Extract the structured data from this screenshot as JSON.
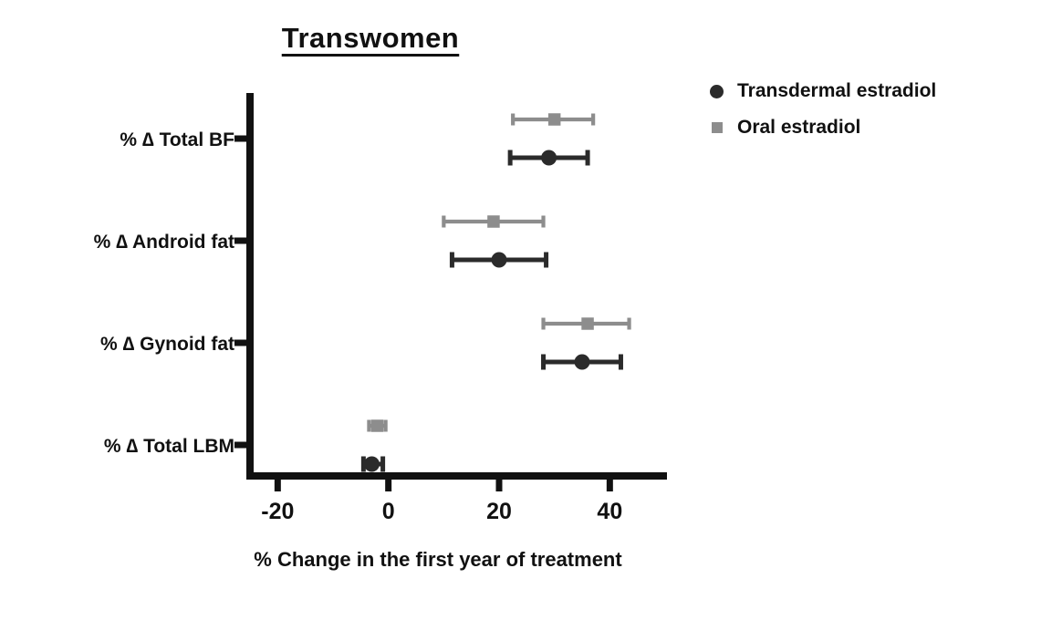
{
  "title": "Transwomen",
  "x_axis_label": "% Change in the first year of treatment",
  "colors": {
    "transdermal": "#2b2b2b",
    "oral": "#8d8d8d",
    "axis": "#111111",
    "text": "#111111",
    "background": "#ffffff"
  },
  "legend": {
    "position": "top-right",
    "items": [
      {
        "label": "Transdermal estradiol",
        "marker": "circle",
        "color": "#2b2b2b"
      },
      {
        "label": "Oral estradiol",
        "marker": "square",
        "color": "#8d8d8d"
      }
    ]
  },
  "chart_data": {
    "type": "scatter",
    "subtype": "forest-dot-plot-with-error-bars",
    "title": "Transwomen",
    "xlabel": "% Change in the first year of treatment",
    "ylabel": "",
    "xlim": [
      -25,
      50
    ],
    "xticks": [
      -20,
      0,
      20,
      40
    ],
    "grid": false,
    "legend_position": "top-right",
    "categories": [
      "% ∆ Total BF",
      "% ∆ Android fat",
      "% ∆ Gynoid fat",
      "% ∆ Total LBM"
    ],
    "series": [
      {
        "name": "Oral estradiol",
        "marker": "square",
        "color": "#8d8d8d",
        "row_side": "upper",
        "points": [
          {
            "category": "% ∆ Total BF",
            "value": 30,
            "ci": [
              22.5,
              37
            ]
          },
          {
            "category": "% ∆ Android fat",
            "value": 19,
            "ci": [
              10,
              28
            ]
          },
          {
            "category": "% ∆ Gynoid fat",
            "value": 36,
            "ci": [
              28,
              43.5
            ]
          },
          {
            "category": "% ∆ Total LBM",
            "value": -2,
            "ci": [
              -3.5,
              -0.5
            ]
          }
        ]
      },
      {
        "name": "Transdermal estradiol",
        "marker": "circle",
        "color": "#2b2b2b",
        "row_side": "lower",
        "points": [
          {
            "category": "% ∆ Total BF",
            "value": 29,
            "ci": [
              22,
              36
            ]
          },
          {
            "category": "% ∆ Android fat",
            "value": 20,
            "ci": [
              11.5,
              28.5
            ]
          },
          {
            "category": "% ∆ Gynoid fat",
            "value": 35,
            "ci": [
              28,
              42
            ]
          },
          {
            "category": "% ∆ Total LBM",
            "value": -3,
            "ci": [
              -4.5,
              -1
            ]
          }
        ]
      }
    ]
  }
}
